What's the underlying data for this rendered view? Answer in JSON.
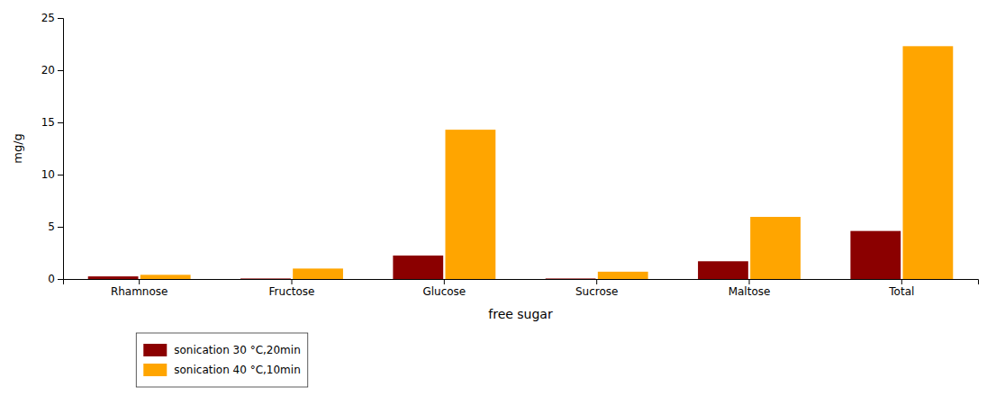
{
  "chart_data": {
    "type": "bar",
    "categories": [
      "Rhamnose",
      "Fructose",
      "Glucose",
      "Sucrose",
      "Maltose",
      "Total"
    ],
    "series": [
      {
        "name": "sonication 30 °C,20min",
        "color": "#8B0000",
        "values": [
          0.25,
          0.05,
          2.25,
          0.05,
          1.7,
          4.6
        ]
      },
      {
        "name": "sonication 40 °C,10min",
        "color": "#FFA500",
        "values": [
          0.4,
          1.0,
          14.3,
          0.7,
          5.95,
          22.3
        ]
      }
    ],
    "xlabel": "free sugar",
    "ylabel": "mg/g",
    "ylim": [
      0,
      25
    ],
    "yticks": [
      0,
      5,
      10,
      15,
      20,
      25
    ],
    "grid": false,
    "legend": "bottom"
  }
}
